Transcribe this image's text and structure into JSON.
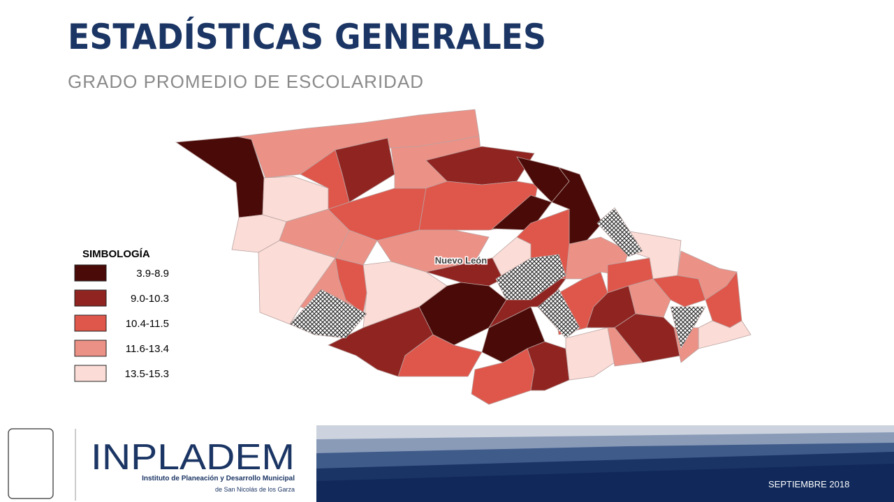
{
  "header": {
    "title": "ESTADÍSTICAS GENERALES",
    "subtitle": "GRADO PROMEDIO DE ESCOLARIDAD"
  },
  "legend": {
    "title": "SIMBOLOGÍA",
    "items": [
      {
        "label": "3.9-8.9",
        "color": "#4a0a07"
      },
      {
        "label": "9.0-10.3",
        "color": "#8f2421"
      },
      {
        "label": "10.4-11.5",
        "color": "#df564b"
      },
      {
        "label": "11.6-13.4",
        "color": "#ec9186"
      },
      {
        "label": "13.5-15.3",
        "color": "#fbdcd7"
      }
    ]
  },
  "map": {
    "label": "Nuevo León"
  },
  "footer": {
    "org": "INPLADEM",
    "org_full": "Instituto de Planeación y Desarrollo Municipal",
    "org_place": "de San Nicolás de los Garza",
    "date": "SEPTIEMBRE 2018"
  }
}
